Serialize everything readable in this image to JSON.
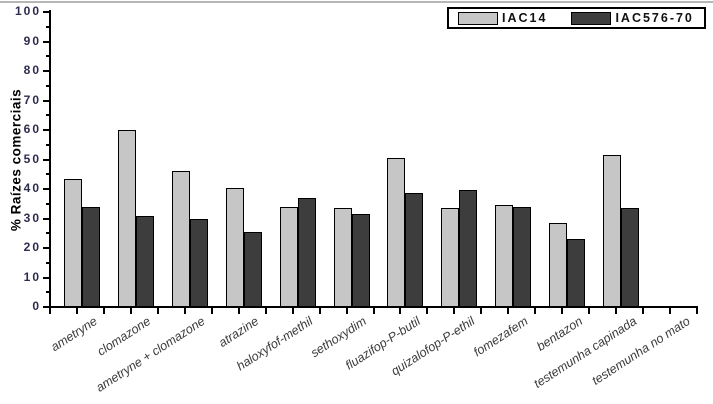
{
  "chart_data": {
    "type": "bar",
    "title": "",
    "xlabel": "",
    "ylabel": "% Raízes comerciais",
    "ylim": [
      0,
      100
    ],
    "y_major_step": 10,
    "y_minor_step": 5,
    "y_tick_labels": [
      "0",
      "10",
      "20",
      "30",
      "40",
      "50",
      "60",
      "70",
      "80",
      "90",
      "100"
    ],
    "grid": false,
    "legend_position": "top-right",
    "categories": [
      "ametryne",
      "clomazone",
      "ametryne + clomazone",
      "atrazine",
      "haloxyfof-methil",
      "sethoxydim",
      "fluazifop-P-butil",
      "quizalofop-P-ethil",
      "fomezafem",
      "bentazon",
      "testemunha capinada",
      "testemunha no mato"
    ],
    "series": [
      {
        "name": "IAC14",
        "color": "#c6c6c6",
        "values": [
          43.5,
          60,
          46,
          40.5,
          34,
          33.5,
          50.5,
          33.5,
          34.5,
          28.5,
          51.5,
          0
        ]
      },
      {
        "name": "IAC576-70",
        "color": "#3d3d3d",
        "values": [
          34,
          31,
          30,
          25.5,
          37,
          31.5,
          38.5,
          39.5,
          34,
          23,
          33.5,
          0
        ]
      }
    ]
  }
}
